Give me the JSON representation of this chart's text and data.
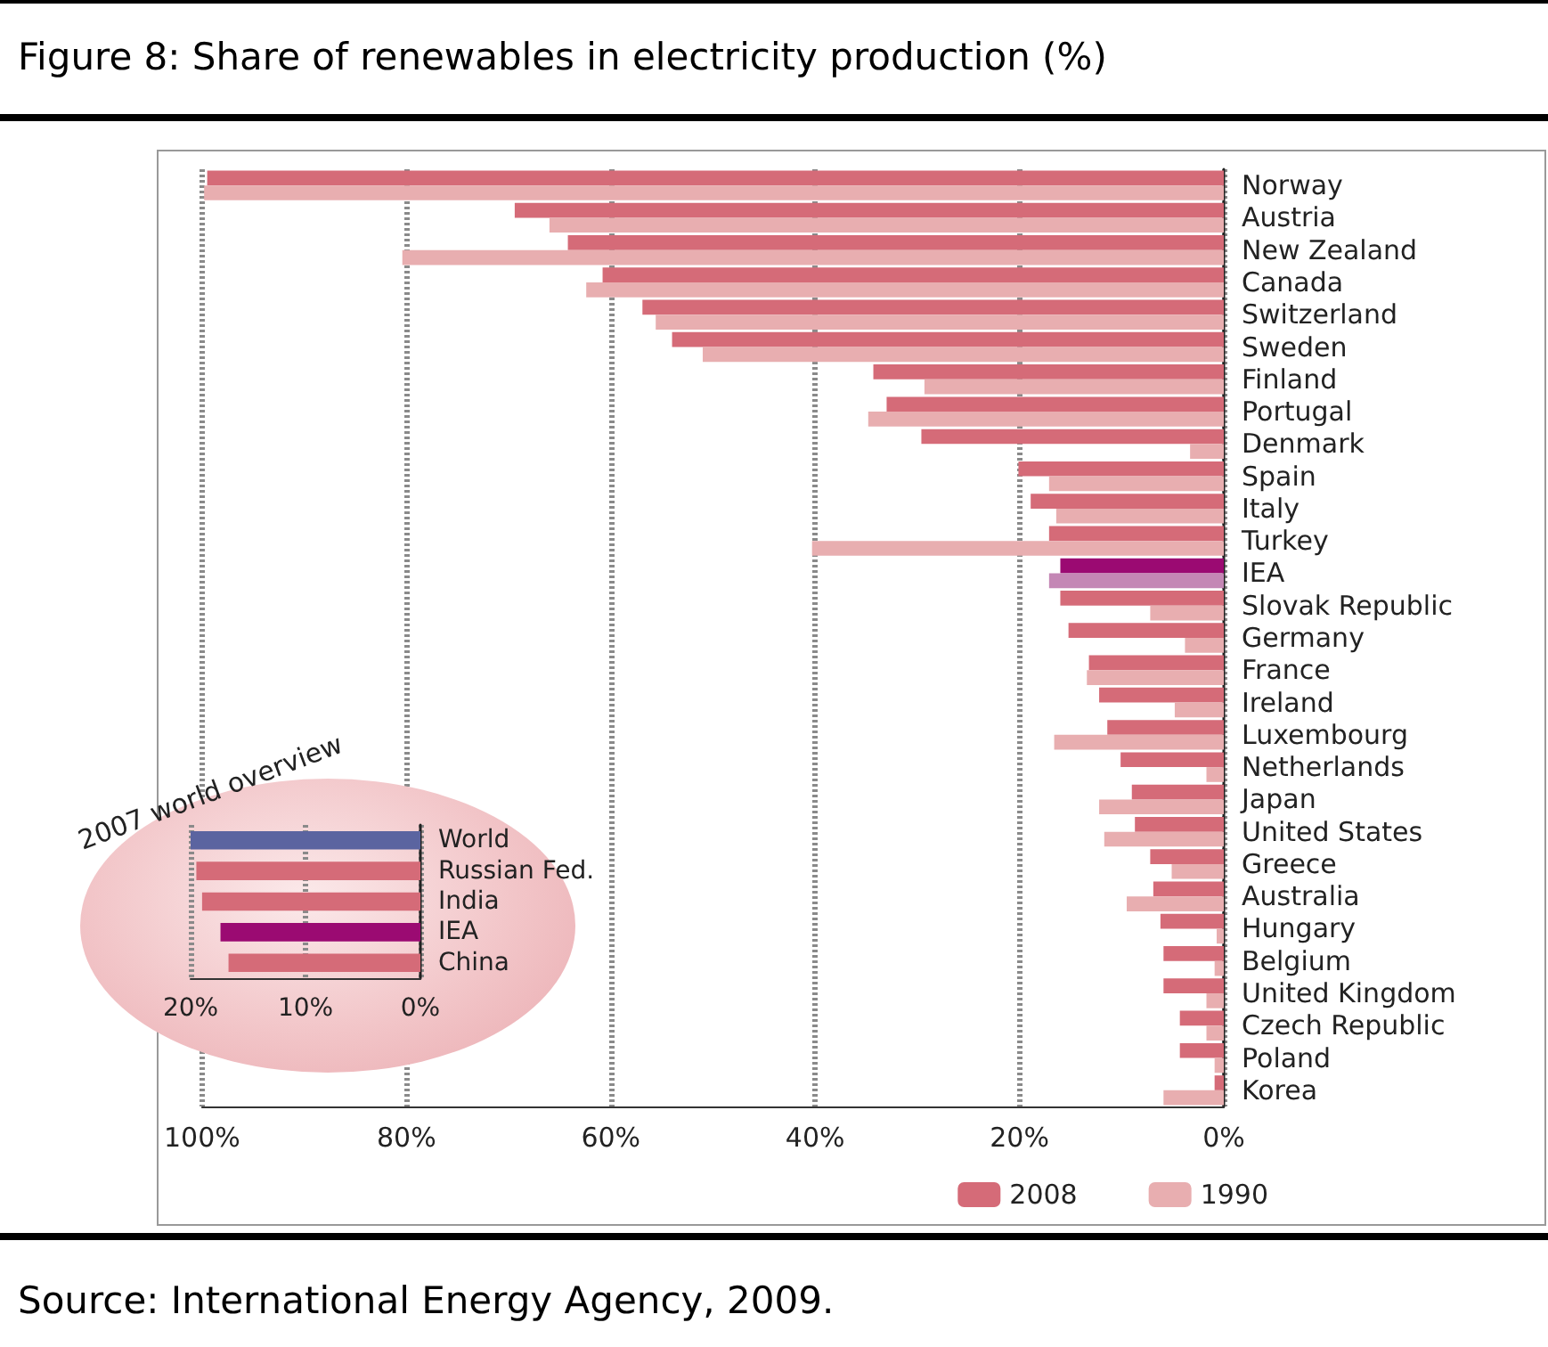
{
  "chart_data": [
    {
      "type": "bar",
      "orientation": "horizontal",
      "title": "Figure 8: Share of renewables in electricity production (%)",
      "categories": [
        "Norway",
        "Austria",
        "New Zealand",
        "Canada",
        "Switzerland",
        "Sweden",
        "Finland",
        "Portugal",
        "Denmark",
        "Spain",
        "Italy",
        "Turkey",
        "IEA",
        "Slovak Republic",
        "Germany",
        "France",
        "Ireland",
        "Luxembourg",
        "Netherlands",
        "Japan",
        "United States",
        "Greece",
        "Australia",
        "Hungary",
        "Belgium",
        "United Kingdom",
        "Czech Republic",
        "Poland",
        "Korea"
      ],
      "series": [
        {
          "name": "2008",
          "color": "#d56b78",
          "colors": [
            "#d56b78",
            "#d56b78",
            "#d56b78",
            "#d56b78",
            "#d56b78",
            "#d56b78",
            "#d56b78",
            "#d56b78",
            "#d56b78",
            "#d56b78",
            "#d56b78",
            "#d56b78",
            "#9b0a72",
            "#d56b78",
            "#d56b78",
            "#d56b78",
            "#d56b78",
            "#d56b78",
            "#d56b78",
            "#d56b78",
            "#d56b78",
            "#d56b78",
            "#d56b78",
            "#d56b78",
            "#d56b78",
            "#d56b78",
            "#d56b78",
            "#d56b78",
            "#d56b78"
          ],
          "values": [
            99.5,
            69.4,
            64.2,
            60.8,
            56.9,
            54.0,
            34.3,
            33.0,
            29.6,
            20.1,
            18.9,
            17.1,
            16.0,
            16.0,
            15.2,
            13.2,
            12.2,
            11.4,
            10.1,
            9.0,
            8.7,
            7.2,
            6.9,
            6.2,
            5.9,
            5.9,
            4.3,
            4.3,
            0.9
          ]
        },
        {
          "name": "1990",
          "color": "#e8aeb0",
          "colors": [
            "#e8aeb0",
            "#e8aeb0",
            "#e8aeb0",
            "#e8aeb0",
            "#e8aeb0",
            "#e8aeb0",
            "#e8aeb0",
            "#e8aeb0",
            "#e8aeb0",
            "#e8aeb0",
            "#e8aeb0",
            "#e8aeb0",
            "#c487b5",
            "#e8aeb0",
            "#e8aeb0",
            "#e8aeb0",
            "#e8aeb0",
            "#e8aeb0",
            "#e8aeb0",
            "#e8aeb0",
            "#e8aeb0",
            "#e8aeb0",
            "#e8aeb0",
            "#e8aeb0",
            "#e8aeb0",
            "#e8aeb0",
            "#e8aeb0",
            "#e8aeb0",
            "#e8aeb0"
          ],
          "values": [
            99.8,
            66.0,
            80.4,
            62.4,
            55.6,
            51.0,
            29.3,
            34.8,
            3.3,
            17.1,
            16.4,
            40.3,
            17.1,
            7.2,
            3.8,
            13.4,
            4.8,
            16.6,
            1.7,
            12.2,
            11.7,
            5.1,
            9.5,
            0.7,
            0.9,
            1.7,
            1.7,
            0.9,
            5.9
          ]
        }
      ],
      "xlim": [
        100,
        0
      ],
      "xticks": [
        {
          "value": 100,
          "label": "100%"
        },
        {
          "value": 80,
          "label": "80%"
        },
        {
          "value": 60,
          "label": "60%"
        },
        {
          "value": 40,
          "label": "40%"
        },
        {
          "value": 20,
          "label": "20%"
        },
        {
          "value": 0,
          "label": "0%"
        }
      ],
      "grid": "x",
      "legend": "bottom right",
      "annotations": [
        "Source: International Energy Agency, 2009."
      ]
    },
    {
      "type": "bar",
      "orientation": "horizontal",
      "title": "2007 world overview",
      "categories": [
        "World",
        "Russian Fed.",
        "India",
        "IEA",
        "China"
      ],
      "values": [
        20.0,
        19.5,
        19.0,
        17.4,
        16.7
      ],
      "colors": [
        "#5b64a0",
        "#d56b78",
        "#d56b78",
        "#9b0a72",
        "#d56b78"
      ],
      "xlim": [
        20,
        0
      ],
      "xticks": [
        {
          "value": 20,
          "label": "20%"
        },
        {
          "value": 10,
          "label": "10%"
        },
        {
          "value": 0,
          "label": "0%"
        }
      ],
      "grid": "x",
      "legend": false
    }
  ]
}
